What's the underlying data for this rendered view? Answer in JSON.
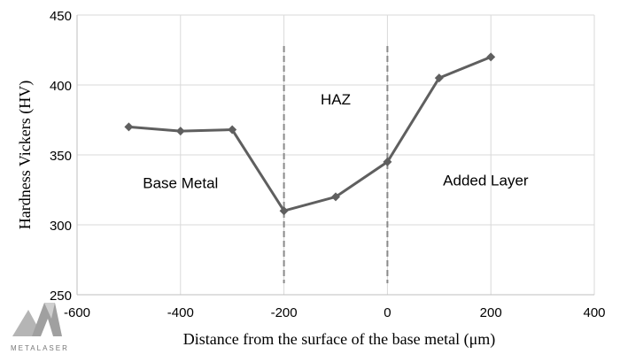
{
  "chart_data": {
    "type": "line",
    "title": "",
    "xlabel": "Distance from the surface of the base metal (μm)",
    "ylabel": "Hardness Vickers (HV)",
    "xlim": [
      -600,
      400
    ],
    "ylim": [
      250,
      450
    ],
    "xticks": [
      -600,
      -400,
      -200,
      0,
      200,
      400
    ],
    "yticks": [
      250,
      300,
      350,
      400,
      450
    ],
    "grid": true,
    "series": [
      {
        "name": "Hardness",
        "color": "#5f5f5f",
        "marker": "diamond",
        "x": [
          -500,
          -400,
          -300,
          -200,
          -100,
          0,
          100,
          200
        ],
        "y": [
          370,
          367,
          368,
          310,
          320,
          345,
          405,
          420
        ]
      }
    ],
    "boundaries": [
      -200,
      0
    ],
    "annotations": [
      {
        "text": "Base Metal",
        "x": -400,
        "y": 330
      },
      {
        "text": "HAZ",
        "x": -100,
        "y": 390
      },
      {
        "text": "Added Layer",
        "x": 190,
        "y": 332
      }
    ]
  },
  "logo": {
    "text": "METALASER"
  }
}
